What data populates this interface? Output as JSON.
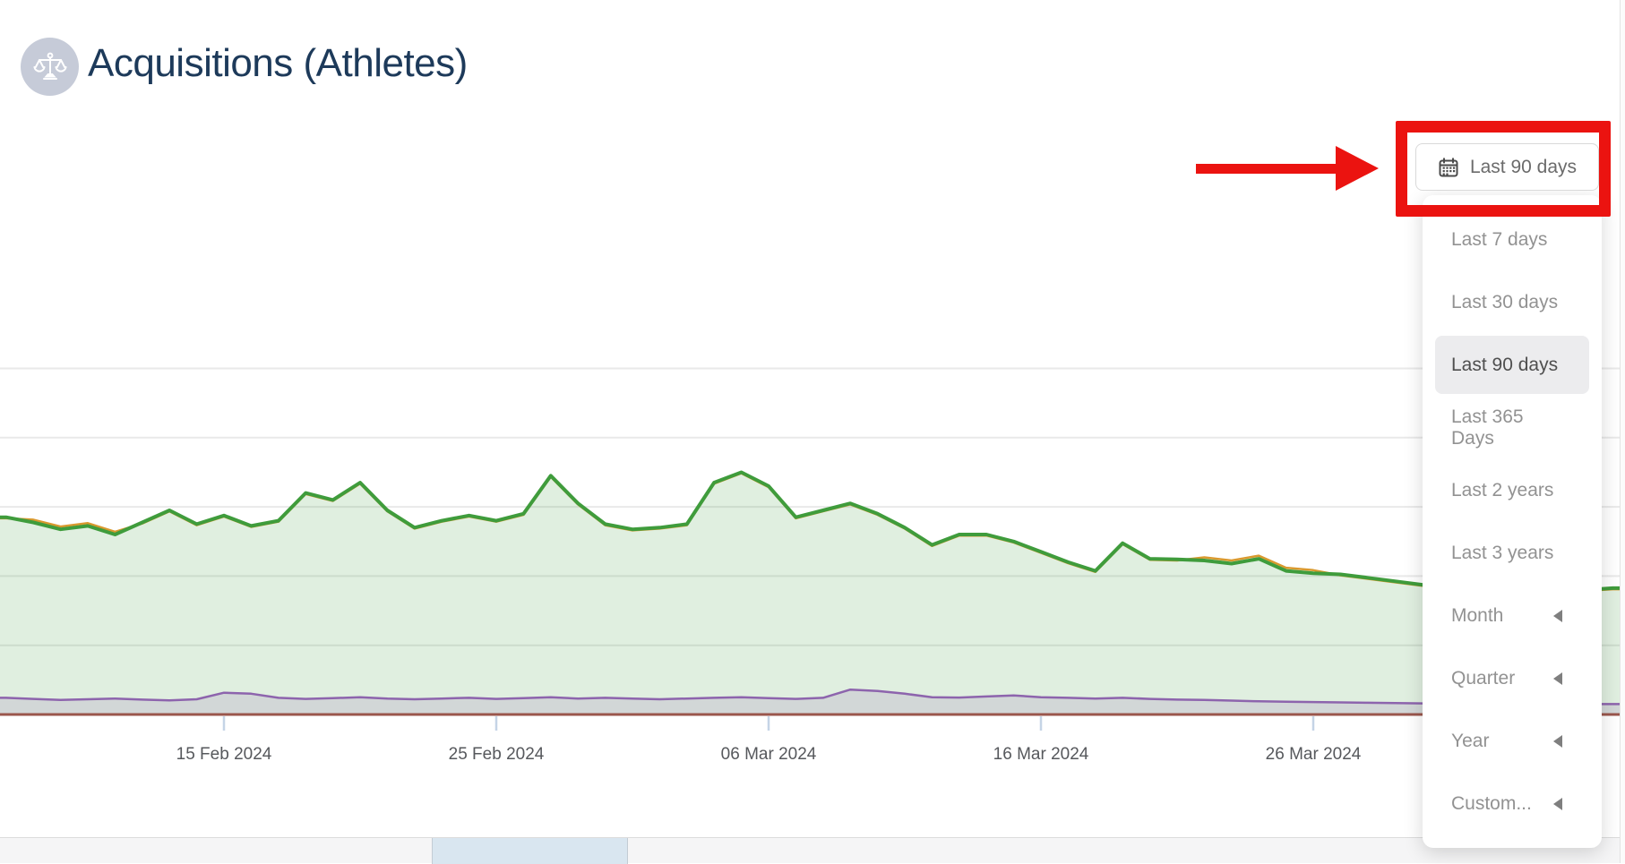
{
  "header": {
    "title": "Acquisitions (Athletes)",
    "title_color": "#1d3a5a",
    "icon": "scales-icon"
  },
  "toolbar": {
    "date_range_button": {
      "label": "Last 90 days",
      "icon": "calendar-icon"
    }
  },
  "dropdown": {
    "items": [
      {
        "label": "Last 7 days",
        "selected": false,
        "has_submenu": false
      },
      {
        "label": "Last 30 days",
        "selected": false,
        "has_submenu": false
      },
      {
        "label": "Last 90 days",
        "selected": true,
        "has_submenu": false
      },
      {
        "label": "Last 365 Days",
        "selected": false,
        "has_submenu": false
      },
      {
        "label": "Last 2 years",
        "selected": false,
        "has_submenu": false
      },
      {
        "label": "Last 3 years",
        "selected": false,
        "has_submenu": false
      },
      {
        "label": "Month",
        "selected": false,
        "has_submenu": true
      },
      {
        "label": "Quarter",
        "selected": false,
        "has_submenu": true
      },
      {
        "label": "Year",
        "selected": false,
        "has_submenu": true
      },
      {
        "label": "Custom...",
        "selected": false,
        "has_submenu": true
      }
    ]
  },
  "annotation": {
    "color": "#eb1310",
    "type": "arrow-and-box-highlight"
  },
  "icons": {
    "header": "scales-icon",
    "button": "calendar-icon",
    "submenu": "left-triangle-icon"
  },
  "palette": {
    "green_line": "#3f9c3c",
    "green_fill": "rgba(63,156,60,0.16)",
    "orange_line": "#d9992e",
    "purple_line": "#8d64ad",
    "purple_fill": "rgba(141,100,173,0.17)",
    "axis_line": "#9a564c",
    "gridline": "#e9e9e9",
    "tick": "#c5d4e6",
    "tick_label": "#56585c",
    "strip_bg": "#f5f5f6",
    "strip_thumb": "#d9e6f0"
  },
  "chart_data": {
    "type": "area",
    "title": "",
    "xlabel": "",
    "ylabel": "",
    "legend": false,
    "grid": true,
    "ylim": [
      0,
      120
    ],
    "grid_values": [
      20,
      40,
      60,
      80,
      100
    ],
    "x_unit": "days since 15 Feb 2024",
    "day_start": -8,
    "x_ticks": [
      {
        "day": 0,
        "label": "15 Feb 2024"
      },
      {
        "day": 10,
        "label": "25 Feb 2024"
      },
      {
        "day": 20,
        "label": "06 Mar 2024"
      },
      {
        "day": 30,
        "label": "16 Mar 2024"
      },
      {
        "day": 40,
        "label": "26 Mar 2024"
      }
    ],
    "series": [
      {
        "name": "athletes-green",
        "color": "#3f9c3c",
        "fill": "rgba(63,156,60,0.16)",
        "width": 4,
        "values": [
          57,
          55.5,
          53.5,
          54.5,
          52,
          55.5,
          59,
          55,
          57.5,
          54.5,
          56,
          64,
          62,
          67,
          59,
          54,
          56,
          57.5,
          56,
          58,
          69,
          61,
          55,
          53.5,
          54,
          55,
          67,
          70,
          66,
          57,
          59,
          61,
          58,
          54,
          49,
          52,
          52,
          50,
          47,
          44,
          41.5,
          49.5,
          45,
          44.8,
          44.5,
          43.6,
          45,
          41.5,
          40.8,
          40.5,
          39.5,
          38.5,
          37.5,
          37,
          36.5,
          35.5,
          35,
          36.5,
          36,
          36.5
        ]
      },
      {
        "name": "secondary-orange",
        "color": "#d9992e",
        "fill": "none",
        "width": 2.5,
        "values": [
          56.7,
          56.3,
          54.3,
          55.3,
          52.8,
          55.2,
          58.7,
          54.7,
          57.2,
          54.2,
          55.7,
          63.7,
          61.7,
          66.7,
          58.7,
          53.7,
          55.7,
          57.2,
          55.7,
          57.7,
          68.7,
          60.7,
          54.7,
          53.2,
          53.7,
          54.7,
          66.7,
          69.7,
          65.7,
          56.7,
          58.7,
          60.7,
          57.7,
          53.7,
          48.7,
          51.7,
          51.7,
          49.7,
          46.7,
          43.7,
          41.2,
          49.2,
          44.7,
          44.5,
          45.4,
          44.5,
          45.9,
          42.4,
          41.7,
          40.2,
          39.2,
          38.2,
          37.2,
          36.7,
          36.2,
          35.2,
          34.7,
          36.2,
          35.7,
          36.2
        ]
      },
      {
        "name": "tertiary-purple",
        "color": "#8d64ad",
        "fill": "rgba(141,100,173,0.17)",
        "width": 2.5,
        "values": [
          4.8,
          4.5,
          4.2,
          4.4,
          4.6,
          4.3,
          4.1,
          4.4,
          6.3,
          6,
          4.8,
          4.5,
          4.7,
          5,
          4.6,
          4.4,
          4.6,
          4.8,
          4.5,
          4.7,
          5,
          4.6,
          4.8,
          4.6,
          4.4,
          4.6,
          4.8,
          5,
          4.7,
          4.5,
          4.8,
          7.2,
          6.8,
          6,
          5,
          4.9,
          5.2,
          5.5,
          5,
          4.8,
          4.6,
          4.8,
          4.5,
          4.3,
          4.2,
          4,
          3.8,
          3.7,
          3.6,
          3.5,
          3.4,
          3.3,
          3.2,
          3.2,
          3.1,
          3,
          3,
          3,
          3,
          3
        ]
      }
    ],
    "axis_line_color": "#9a564c"
  }
}
